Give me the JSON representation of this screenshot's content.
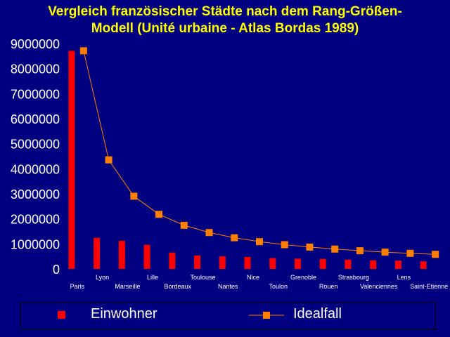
{
  "title_line1": "Vergleich französischer Städte nach dem Rang-Größen-",
  "title_line2": "Modell (Unité urbaine - Atlas Bordas 1989)",
  "colors": {
    "background": "#000080",
    "title": "#ffff00",
    "bars": "#ff0000",
    "line": "#ff8000",
    "text": "#ffffff"
  },
  "chart_data": {
    "type": "bar",
    "title": "Vergleich französischer Städte nach dem Rang-Größen-Modell (Unité urbaine - Atlas Bordas 1989)",
    "categories": [
      "Paris",
      "Lyon",
      "Marseille",
      "Lille",
      "Bordeaux",
      "Toulouse",
      "Nantes",
      "Nice",
      "Toulon",
      "Grenoble",
      "Rouen",
      "Strasbourg",
      "Valenciennes",
      "Lens",
      "Saint-Etienne"
    ],
    "ylim": [
      0,
      9000000
    ],
    "yticks": [
      "0",
      "1000000",
      "2000000",
      "3000000",
      "4000000",
      "5000000",
      "6000000",
      "7000000",
      "8000000",
      "9000000"
    ],
    "grid": false,
    "legend_position": "bottom",
    "series": [
      {
        "name": "Einwohner",
        "type": "bar",
        "values": [
          8710000,
          1240000,
          1120000,
          960000,
          650000,
          540000,
          500000,
          480000,
          430000,
          410000,
          400000,
          370000,
          340000,
          330000,
          300000
        ]
      },
      {
        "name": "Idealfall",
        "type": "line",
        "values": [
          8710000,
          4355000,
          2903000,
          2178000,
          1742000,
          1452000,
          1244000,
          1089000,
          968000,
          871000,
          792000,
          726000,
          670000,
          622000,
          581000
        ]
      }
    ]
  }
}
